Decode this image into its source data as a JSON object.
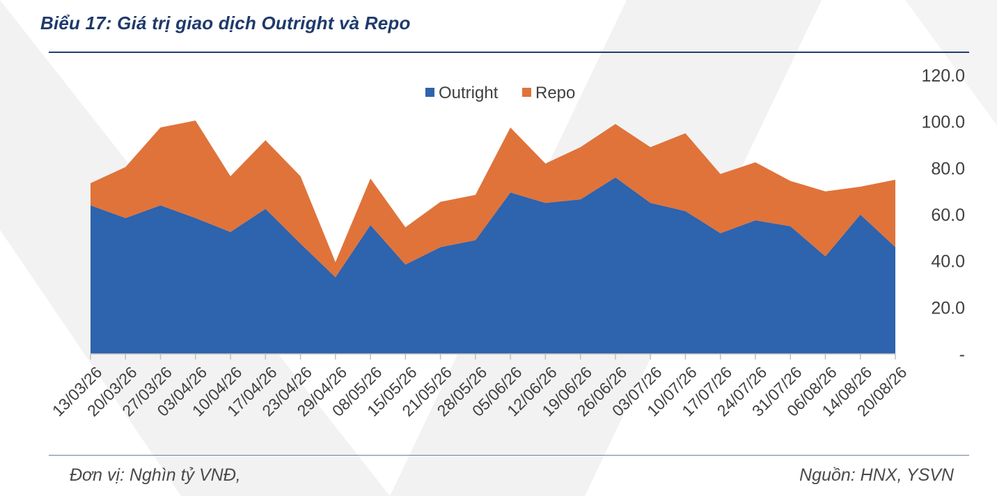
{
  "header": {
    "title": "Biểu 17: Giá trị giao dịch Outright và Repo"
  },
  "footer": {
    "unit": "Đơn vị: Nghìn tỷ VNĐ,",
    "source": "Nguồn: HNX, YSVN"
  },
  "colors": {
    "outright": "#2e63ad",
    "repo": "#e0733a",
    "title": "#1f3a6b",
    "watermark": "#f1f1f1"
  },
  "chart_data": {
    "type": "area",
    "stacked": true,
    "x": [
      "13/03/26",
      "20/03/26",
      "27/03/26",
      "03/04/26",
      "10/04/26",
      "17/04/26",
      "23/04/26",
      "29/04/26",
      "08/05/26",
      "15/05/26",
      "21/05/26",
      "28/05/26",
      "05/06/26",
      "12/06/26",
      "19/06/26",
      "26/06/26",
      "03/07/26",
      "10/07/26",
      "17/07/26",
      "24/07/26",
      "31/07/26",
      "06/08/26",
      "14/08/26",
      "20/08/26"
    ],
    "series": [
      {
        "name": "Outright",
        "color": "#2e63ad",
        "values": [
          64.0,
          58.5,
          64.0,
          58.5,
          52.5,
          62.5,
          47.5,
          33.0,
          55.5,
          38.5,
          46.0,
          49.0,
          69.5,
          65.0,
          66.5,
          76.0,
          65.0,
          61.5,
          52.0,
          57.5,
          55.0,
          42.0,
          60.0,
          46.0
        ]
      },
      {
        "name": "Repo",
        "color": "#e0733a",
        "values": [
          9.5,
          22.0,
          33.5,
          42.0,
          24.0,
          29.5,
          29.0,
          6.5,
          20.0,
          16.0,
          19.5,
          19.5,
          28.0,
          17.0,
          22.5,
          23.0,
          24.0,
          33.5,
          25.5,
          25.0,
          19.5,
          28.0,
          12.0,
          29.0
        ]
      }
    ],
    "y_ticks": [
      "-",
      "20.0",
      "40.0",
      "60.0",
      "80.0",
      "100.0",
      "120.0"
    ],
    "ylim": [
      0,
      120
    ],
    "legend_position": "top-center",
    "y_axis_position": "right",
    "grid": false
  }
}
